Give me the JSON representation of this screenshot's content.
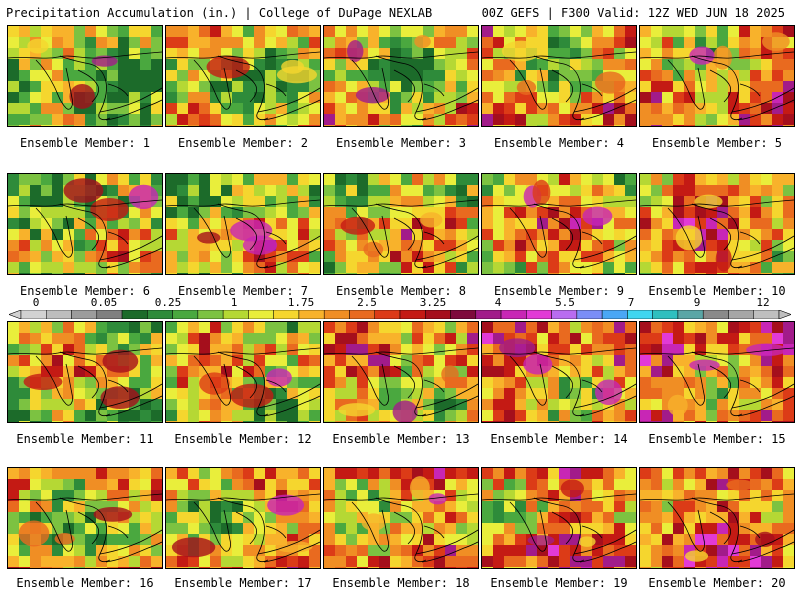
{
  "header": {
    "left": "Precipitation Accumulation (in.) | College of DuPage NEXLAB",
    "right": "00Z GEFS | F300 Valid: 12Z WED JUN 18 2025"
  },
  "colorbar": {
    "tick_labels": [
      "0",
      "0.05",
      "0.25",
      "1",
      "1.75",
      "2.5",
      "3.25",
      "4",
      "5.5",
      "7",
      "9",
      "12"
    ],
    "colors": [
      "#d2d2d2",
      "#bdbdbd",
      "#9c9c9c",
      "#808080",
      "#1c6b2a",
      "#2e8b3a",
      "#4aa83f",
      "#7cc241",
      "#b5d834",
      "#e9ee3b",
      "#f5d62e",
      "#f8b22b",
      "#f08e24",
      "#e96a1f",
      "#dc3b17",
      "#c41a14",
      "#a50f1c",
      "#7e0a3c",
      "#a21b8a",
      "#c826b5",
      "#e23ad6",
      "#b96cf0",
      "#7b8ef7",
      "#4aa7f5",
      "#3fd6f0",
      "#2fbfbf",
      "#5aa6a6",
      "#8a8a8a",
      "#a6a6a6",
      "#bfbfbf"
    ]
  },
  "panels": [
    {
      "label": "Ensemble Member: 1"
    },
    {
      "label": "Ensemble Member: 2"
    },
    {
      "label": "Ensemble Member: 3"
    },
    {
      "label": "Ensemble Member: 4"
    },
    {
      "label": "Ensemble Member: 5"
    },
    {
      "label": "Ensemble Member: 6"
    },
    {
      "label": "Ensemble Member: 7"
    },
    {
      "label": "Ensemble Member: 8"
    },
    {
      "label": "Ensemble Member: 9"
    },
    {
      "label": "Ensemble Member: 10"
    },
    {
      "label": "Ensemble Member: 11"
    },
    {
      "label": "Ensemble Member: 12"
    },
    {
      "label": "Ensemble Member: 13"
    },
    {
      "label": "Ensemble Member: 14"
    },
    {
      "label": "Ensemble Member: 15"
    },
    {
      "label": "Ensemble Member: 16"
    },
    {
      "label": "Ensemble Member: 17"
    },
    {
      "label": "Ensemble Member: 18"
    },
    {
      "label": "Ensemble Member: 19"
    },
    {
      "label": "Ensemble Member: 20"
    }
  ]
}
